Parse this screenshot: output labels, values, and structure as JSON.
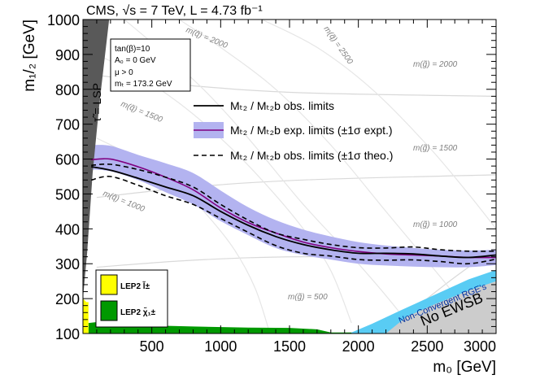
{
  "chart_data": {
    "type": "line",
    "title": "CMS, √s = 7 TeV, L = 4.73 fb⁻¹",
    "xlabel": "m₀ [GeV]",
    "ylabel": "m₁/₂ [GeV]",
    "xlim": [
      0,
      3000
    ],
    "ylim": [
      100,
      1000
    ],
    "x_ticks": [
      500,
      1000,
      1500,
      2000,
      2500,
      3000
    ],
    "x_tick_labels": [
      "500",
      "1000",
      "1500",
      "2000",
      "2500",
      "3000"
    ],
    "y_ticks": [
      100,
      200,
      300,
      400,
      500,
      600,
      700,
      800,
      900,
      1000
    ],
    "y_tick_labels": [
      "100",
      "200",
      "300",
      "400",
      "500",
      "600",
      "700",
      "800",
      "900",
      "1000"
    ],
    "params_box": [
      "tan(β)=10",
      "A₀ = 0 GeV",
      "μ > 0",
      "mₜ = 173.2 GeV"
    ],
    "legend": [
      {
        "label": "Mₜ₂ / Mₜ₂b obs. limits",
        "style": "solid-black"
      },
      {
        "label": "Mₜ₂ / Mₜ₂b exp. limits (±1σ expt.)",
        "style": "purple-band"
      },
      {
        "label": "Mₜ₂ / Mₜ₂b obs. limits (±1σ theo.)",
        "style": "dashed-black"
      }
    ],
    "lep_legend": [
      {
        "label": "LEP2 l̃±",
        "color": "#ffff00"
      },
      {
        "label": "LEP2 χ̃₁±",
        "color": "#00a000"
      }
    ],
    "region_labels": {
      "stau_lsp": "τ̃ = LSP",
      "nonconv": "Non-Convergent RGE's",
      "no_ewsb": "No EWSB"
    },
    "iso_gluino_labels": [
      "m(g̃) = 2000",
      "m(g̃) = 1500",
      "m(g̃) = 1000",
      "m(g̃) = 500"
    ],
    "iso_squark_labels": [
      "m(q̃) = 2000",
      "m(q̃) = 2500",
      "m(q̃) = 1500",
      "m(q̃) = 1000"
    ],
    "series": [
      {
        "name": "obs",
        "x": [
          60,
          200,
          400,
          600,
          800,
          1000,
          1200,
          1400,
          1600,
          1800,
          2000,
          2200,
          2400,
          2600,
          2800,
          3000
        ],
        "y": [
          578,
          568,
          545,
          520,
          495,
          450,
          410,
          378,
          355,
          340,
          330,
          330,
          328,
          322,
          318,
          325
        ]
      },
      {
        "name": "theo_up",
        "x": [
          60,
          200,
          400,
          600,
          800,
          1000,
          1200,
          1400,
          1600,
          1800,
          2000,
          2200,
          2400,
          2600,
          2800,
          3000
        ],
        "y": [
          582,
          585,
          570,
          548,
          520,
          470,
          425,
          388,
          370,
          355,
          346,
          345,
          348,
          340,
          336,
          336
        ]
      },
      {
        "name": "theo_down",
        "x": [
          60,
          200,
          400,
          600,
          800,
          1000,
          1200,
          1400,
          1600,
          1800,
          2000,
          2200,
          2400,
          2600,
          2800,
          3000
        ],
        "y": [
          540,
          550,
          525,
          495,
          470,
          430,
          390,
          352,
          330,
          322,
          312,
          310,
          311,
          306,
          300,
          313
        ]
      },
      {
        "name": "exp",
        "x": [
          60,
          200,
          400,
          600,
          800,
          1000,
          1200,
          1400,
          1600,
          1800,
          2000,
          2200,
          2400,
          2600,
          2800,
          3000
        ],
        "y": [
          598,
          600,
          578,
          548,
          512,
          460,
          418,
          388,
          362,
          346,
          335,
          328,
          325,
          322,
          318,
          318
        ]
      },
      {
        "name": "exp_band_up",
        "x": [
          60,
          200,
          400,
          600,
          800,
          1000,
          1200,
          1400,
          1600,
          1800,
          2000,
          2200,
          2400,
          2600,
          2800,
          3000
        ],
        "y": [
          640,
          638,
          612,
          588,
          560,
          510,
          462,
          425,
          398,
          378,
          362,
          352,
          345,
          340,
          338,
          340
        ]
      },
      {
        "name": "exp_band_down",
        "x": [
          60,
          200,
          400,
          600,
          800,
          1000,
          1200,
          1400,
          1600,
          1800,
          2000,
          2200,
          2400,
          2600,
          2800,
          3000
        ],
        "y": [
          570,
          565,
          540,
          505,
          470,
          422,
          382,
          345,
          325,
          312,
          300,
          295,
          292,
          290,
          290,
          296
        ]
      }
    ],
    "region_colors": {
      "stau": "#595959",
      "lep_slepton": "#ffff00",
      "lep_chargino": "#009900",
      "nonconv": "#59ccf4",
      "no_ewsb": "#cccccc",
      "band": "#b3b3f0",
      "exp_line": "#800080"
    }
  }
}
